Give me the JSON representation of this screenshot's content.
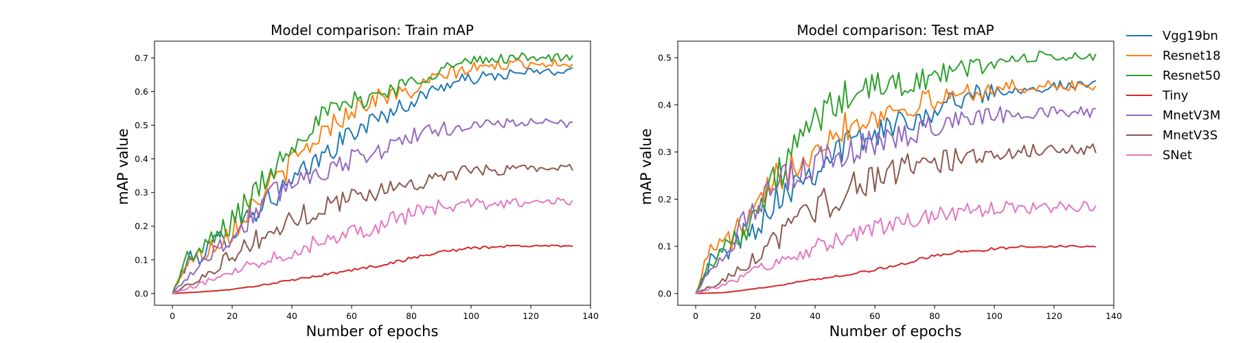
{
  "chart_data": [
    {
      "type": "line",
      "title": "Model comparison: Train mAP",
      "xlabel": "Number of epochs",
      "ylabel": "mAP value",
      "xlim": [
        -6,
        140
      ],
      "ylim": [
        -0.035,
        0.75
      ],
      "xticks": [
        "0",
        "20",
        "40",
        "60",
        "80",
        "100",
        "120",
        "140"
      ],
      "yticks": [
        "0.0",
        "0.1",
        "0.2",
        "0.3",
        "0.4",
        "0.5",
        "0.6",
        "0.7"
      ],
      "grid": false,
      "epochs": 135,
      "series": [
        {
          "name": "Vgg19bn",
          "color": "#1f77b4",
          "anchors": [
            [
              0,
              0
            ],
            [
              5,
              0.1
            ],
            [
              10,
              0.12
            ],
            [
              20,
              0.19
            ],
            [
              30,
              0.27
            ],
            [
              40,
              0.33
            ],
            [
              50,
              0.41
            ],
            [
              60,
              0.48
            ],
            [
              70,
              0.53
            ],
            [
              80,
              0.57
            ],
            [
              90,
              0.62
            ],
            [
              100,
              0.64
            ],
            [
              110,
              0.65
            ],
            [
              120,
              0.66
            ],
            [
              134,
              0.66
            ]
          ]
        },
        {
          "name": "Resnet18",
          "color": "#ff7f0e",
          "anchors": [
            [
              0,
              0
            ],
            [
              5,
              0.1
            ],
            [
              10,
              0.12
            ],
            [
              20,
              0.2
            ],
            [
              30,
              0.3
            ],
            [
              40,
              0.39
            ],
            [
              50,
              0.48
            ],
            [
              60,
              0.55
            ],
            [
              70,
              0.59
            ],
            [
              80,
              0.6
            ],
            [
              90,
              0.65
            ],
            [
              100,
              0.67
            ],
            [
              110,
              0.68
            ],
            [
              120,
              0.685
            ],
            [
              134,
              0.685
            ]
          ]
        },
        {
          "name": "Resnet50",
          "color": "#2ca02c",
          "anchors": [
            [
              0,
              0
            ],
            [
              5,
              0.11
            ],
            [
              10,
              0.13
            ],
            [
              20,
              0.22
            ],
            [
              30,
              0.33
            ],
            [
              40,
              0.45
            ],
            [
              50,
              0.53
            ],
            [
              60,
              0.57
            ],
            [
              70,
              0.6
            ],
            [
              80,
              0.63
            ],
            [
              90,
              0.67
            ],
            [
              100,
              0.69
            ],
            [
              110,
              0.7
            ],
            [
              120,
              0.705
            ],
            [
              134,
              0.7
            ]
          ]
        },
        {
          "name": "Tiny",
          "color": "#d62728",
          "anchors": [
            [
              0,
              0
            ],
            [
              10,
              0.005
            ],
            [
              20,
              0.012
            ],
            [
              30,
              0.025
            ],
            [
              40,
              0.04
            ],
            [
              50,
              0.055
            ],
            [
              60,
              0.07
            ],
            [
              70,
              0.085
            ],
            [
              80,
              0.105
            ],
            [
              90,
              0.125
            ],
            [
              100,
              0.135
            ],
            [
              110,
              0.14
            ],
            [
              120,
              0.142
            ],
            [
              134,
              0.142
            ]
          ]
        },
        {
          "name": "MnetV3M",
          "color": "#9467bd",
          "anchors": [
            [
              0,
              0
            ],
            [
              5,
              0.05
            ],
            [
              10,
              0.1
            ],
            [
              20,
              0.17
            ],
            [
              30,
              0.27
            ],
            [
              40,
              0.34
            ],
            [
              50,
              0.37
            ],
            [
              60,
              0.4
            ],
            [
              70,
              0.43
            ],
            [
              80,
              0.47
            ],
            [
              90,
              0.49
            ],
            [
              100,
              0.5
            ],
            [
              110,
              0.508
            ],
            [
              120,
              0.51
            ],
            [
              134,
              0.505
            ]
          ]
        },
        {
          "name": "MnetV3S",
          "color": "#8c564b",
          "anchors": [
            [
              0,
              0
            ],
            [
              10,
              0.05
            ],
            [
              20,
              0.12
            ],
            [
              30,
              0.17
            ],
            [
              40,
              0.22
            ],
            [
              50,
              0.26
            ],
            [
              60,
              0.29
            ],
            [
              70,
              0.31
            ],
            [
              80,
              0.33
            ],
            [
              90,
              0.35
            ],
            [
              100,
              0.365
            ],
            [
              110,
              0.37
            ],
            [
              120,
              0.375
            ],
            [
              134,
              0.375
            ]
          ]
        },
        {
          "name": "SNet",
          "color": "#e377c2",
          "anchors": [
            [
              0,
              0
            ],
            [
              10,
              0.03
            ],
            [
              20,
              0.07
            ],
            [
              30,
              0.1
            ],
            [
              40,
              0.13
            ],
            [
              50,
              0.16
            ],
            [
              60,
              0.19
            ],
            [
              70,
              0.21
            ],
            [
              80,
              0.24
            ],
            [
              90,
              0.26
            ],
            [
              100,
              0.265
            ],
            [
              110,
              0.27
            ],
            [
              120,
              0.272
            ],
            [
              134,
              0.275
            ]
          ]
        }
      ]
    },
    {
      "type": "line",
      "title": "Model comparison: Test mAP",
      "xlabel": "Number of epochs",
      "ylabel": "mAP value",
      "xlim": [
        -6,
        140
      ],
      "ylim": [
        -0.025,
        0.535
      ],
      "xticks": [
        "0",
        "20",
        "40",
        "60",
        "80",
        "100",
        "120",
        "140"
      ],
      "yticks": [
        "0.0",
        "0.1",
        "0.2",
        "0.3",
        "0.4",
        "0.5"
      ],
      "grid": false,
      "epochs": 135,
      "series": [
        {
          "name": "Vgg19bn",
          "color": "#1f77b4",
          "anchors": [
            [
              0,
              0
            ],
            [
              5,
              0.07
            ],
            [
              10,
              0.09
            ],
            [
              20,
              0.15
            ],
            [
              30,
              0.23
            ],
            [
              40,
              0.27
            ],
            [
              50,
              0.32
            ],
            [
              60,
              0.34
            ],
            [
              70,
              0.37
            ],
            [
              80,
              0.39
            ],
            [
              90,
              0.42
            ],
            [
              100,
              0.43
            ],
            [
              110,
              0.44
            ],
            [
              120,
              0.44
            ],
            [
              134,
              0.44
            ]
          ]
        },
        {
          "name": "Resnet18",
          "color": "#ff7f0e",
          "anchors": [
            [
              0,
              0
            ],
            [
              5,
              0.1
            ],
            [
              10,
              0.11
            ],
            [
              20,
              0.17
            ],
            [
              30,
              0.27
            ],
            [
              40,
              0.32
            ],
            [
              50,
              0.36
            ],
            [
              60,
              0.38
            ],
            [
              70,
              0.4
            ],
            [
              80,
              0.41
            ],
            [
              90,
              0.43
            ],
            [
              100,
              0.435
            ],
            [
              110,
              0.44
            ],
            [
              120,
              0.44
            ],
            [
              134,
              0.443
            ]
          ]
        },
        {
          "name": "Resnet50",
          "color": "#2ca02c",
          "anchors": [
            [
              0,
              0
            ],
            [
              5,
              0.07
            ],
            [
              10,
              0.1
            ],
            [
              20,
              0.17
            ],
            [
              30,
              0.28
            ],
            [
              40,
              0.37
            ],
            [
              50,
              0.42
            ],
            [
              60,
              0.44
            ],
            [
              70,
              0.45
            ],
            [
              80,
              0.46
            ],
            [
              90,
              0.48
            ],
            [
              100,
              0.49
            ],
            [
              110,
              0.5
            ],
            [
              120,
              0.503
            ],
            [
              134,
              0.5
            ]
          ]
        },
        {
          "name": "Tiny",
          "color": "#d62728",
          "anchors": [
            [
              0,
              0
            ],
            [
              10,
              0.002
            ],
            [
              20,
              0.01
            ],
            [
              30,
              0.02
            ],
            [
              40,
              0.03
            ],
            [
              50,
              0.04
            ],
            [
              60,
              0.05
            ],
            [
              70,
              0.065
            ],
            [
              80,
              0.08
            ],
            [
              90,
              0.09
            ],
            [
              100,
              0.095
            ],
            [
              110,
              0.1
            ],
            [
              120,
              0.1
            ],
            [
              134,
              0.1
            ]
          ]
        },
        {
          "name": "MnetV3M",
          "color": "#9467bd",
          "anchors": [
            [
              0,
              0
            ],
            [
              5,
              0.05
            ],
            [
              10,
              0.1
            ],
            [
              20,
              0.18
            ],
            [
              30,
              0.24
            ],
            [
              40,
              0.28
            ],
            [
              50,
              0.3
            ],
            [
              60,
              0.32
            ],
            [
              70,
              0.34
            ],
            [
              80,
              0.36
            ],
            [
              90,
              0.375
            ],
            [
              100,
              0.38
            ],
            [
              110,
              0.385
            ],
            [
              120,
              0.387
            ],
            [
              134,
              0.387
            ]
          ]
        },
        {
          "name": "MnetV3S",
          "color": "#8c564b",
          "anchors": [
            [
              0,
              0
            ],
            [
              10,
              0.03
            ],
            [
              20,
              0.08
            ],
            [
              30,
              0.13
            ],
            [
              40,
              0.18
            ],
            [
              50,
              0.22
            ],
            [
              60,
              0.25
            ],
            [
              70,
              0.27
            ],
            [
              80,
              0.28
            ],
            [
              90,
              0.29
            ],
            [
              100,
              0.3
            ],
            [
              110,
              0.303
            ],
            [
              120,
              0.305
            ],
            [
              134,
              0.307
            ]
          ]
        },
        {
          "name": "SNet",
          "color": "#e377c2",
          "anchors": [
            [
              0,
              0
            ],
            [
              10,
              0.02
            ],
            [
              20,
              0.05
            ],
            [
              30,
              0.07
            ],
            [
              40,
              0.1
            ],
            [
              50,
              0.12
            ],
            [
              60,
              0.14
            ],
            [
              70,
              0.15
            ],
            [
              80,
              0.165
            ],
            [
              90,
              0.175
            ],
            [
              100,
              0.18
            ],
            [
              110,
              0.183
            ],
            [
              120,
              0.185
            ],
            [
              134,
              0.185
            ]
          ]
        }
      ]
    }
  ]
}
